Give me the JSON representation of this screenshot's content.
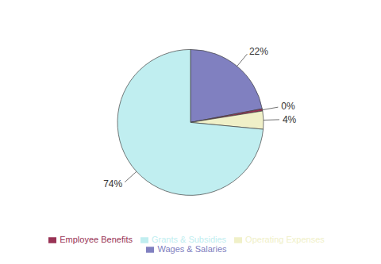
{
  "chart_data": {
    "type": "pie",
    "categories": [
      "Wages & Salaries",
      "Employee Benefits",
      "Operating Expenses",
      "Grants & Subsidies"
    ],
    "values": [
      22,
      0.5,
      4,
      73.5
    ],
    "value_labels": [
      "22%",
      "0%",
      "4%",
      "74%"
    ],
    "colors": [
      "#8080c0",
      "#993355",
      "#f0f0c8",
      "#c0eef0"
    ],
    "legend": "bottom",
    "data_labels": true
  }
}
